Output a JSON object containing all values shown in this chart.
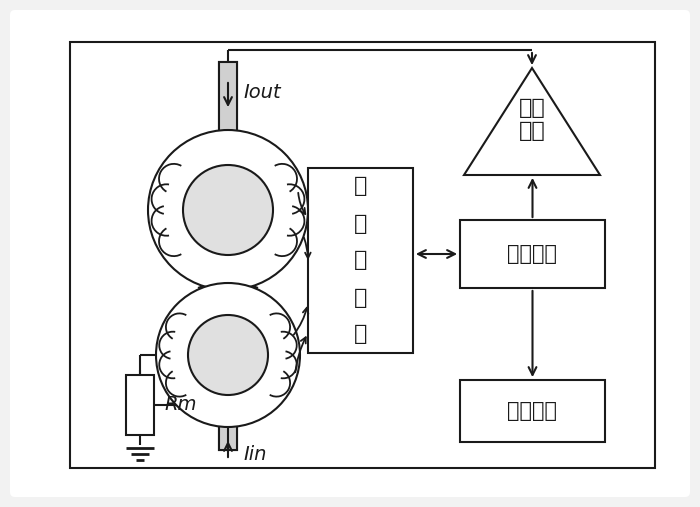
{
  "bg_color": "#f2f2f2",
  "line_color": "#1a1a1a",
  "figsize": [
    7.0,
    5.07
  ],
  "dpi": 100,
  "labels": {
    "Iout": "Iout",
    "Iin": "Iin",
    "Rm": "Rm",
    "mod_line1": "调",
    "mod_line2": "制",
    "mod_line3": "与",
    "mod_line4": "解",
    "mod_line5": "调",
    "power_amp": "功率\n放大",
    "signal_cond": "信号调理",
    "status_mon": "状态监测"
  }
}
